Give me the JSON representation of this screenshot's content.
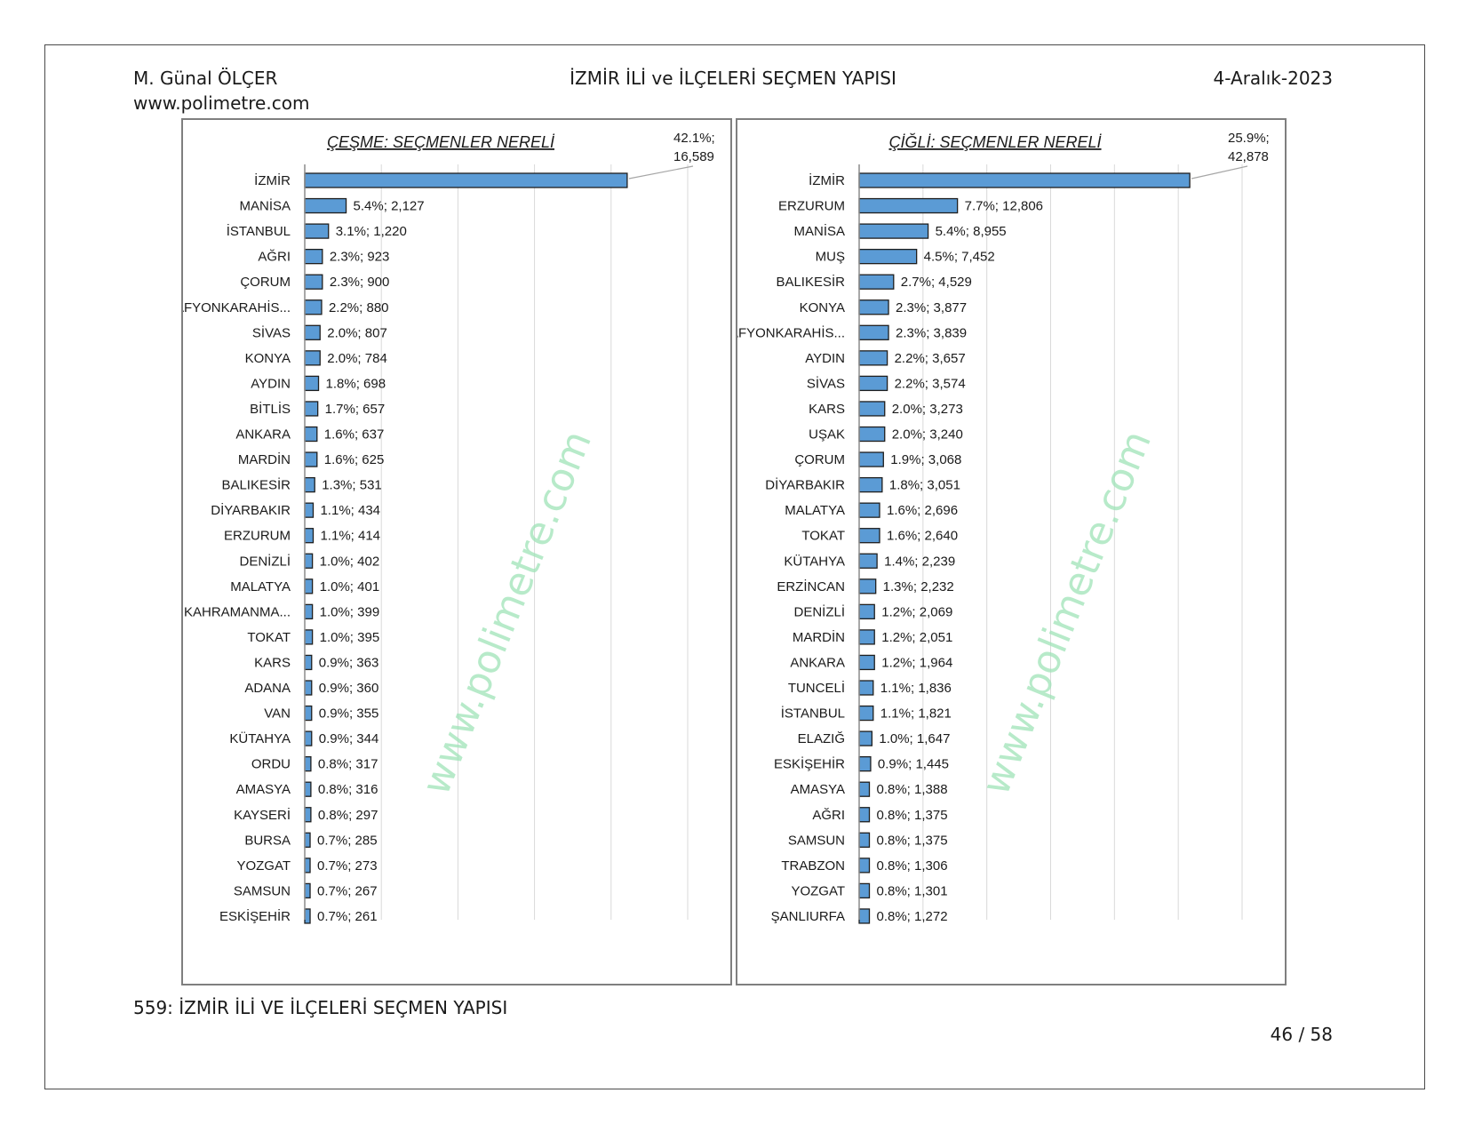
{
  "header": {
    "author": "M. Günal ÖLÇER",
    "website": "www.polimetre.com",
    "title": "İZMİR İLİ ve İLÇELERİ SEÇMEN YAPISI",
    "date": "4-Aralık-2023"
  },
  "footer": {
    "caption": "559: İZMİR İLİ VE İLÇELERİ SEÇMEN YAPISI",
    "page": "46 / 58"
  },
  "watermark": "www.polimetre.com",
  "colors": {
    "bar": "#5b9bd5",
    "bar_border": "#1f1f1f",
    "grid": "#d9d9d9",
    "watermark": "#9fe3b8"
  },
  "chart_data": [
    {
      "type": "bar",
      "orientation": "horizontal",
      "title": "ÇEŞME: SEÇMENLER NERELİ",
      "xlim": [
        0,
        50
      ],
      "grid": true,
      "categories": [
        "İZMİR",
        "MANİSA",
        "İSTANBUL",
        "AĞRI",
        "ÇORUM",
        "AFYONKARAHİS...",
        "SİVAS",
        "KONYA",
        "AYDIN",
        "BİTLİS",
        "ANKARA",
        "MARDİN",
        "BALIKESİR",
        "DİYARBAKIR",
        "ERZURUM",
        "DENİZLİ",
        "MALATYA",
        "KAHRAMANMA...",
        "TOKAT",
        "KARS",
        "ADANA",
        "VAN",
        "KÜTAHYA",
        "ORDU",
        "AMASYA",
        "KAYSERİ",
        "BURSA",
        "YOZGAT",
        "SAMSUN",
        "ESKİŞEHİR"
      ],
      "values": [
        42.1,
        5.4,
        3.1,
        2.3,
        2.3,
        2.2,
        2.0,
        2.0,
        1.8,
        1.7,
        1.6,
        1.6,
        1.3,
        1.1,
        1.1,
        1.0,
        1.0,
        1.0,
        1.0,
        0.9,
        0.9,
        0.9,
        0.9,
        0.8,
        0.8,
        0.8,
        0.7,
        0.7,
        0.7,
        0.7
      ],
      "counts": [
        16589,
        2127,
        1220,
        923,
        900,
        880,
        807,
        784,
        698,
        657,
        637,
        625,
        531,
        434,
        414,
        402,
        401,
        399,
        395,
        363,
        360,
        355,
        344,
        317,
        316,
        297,
        285,
        273,
        267,
        261
      ],
      "data_labels": [
        "42.1%; 16,589",
        "5.4%; 2,127",
        "3.1%; 1,220",
        "2.3%; 923",
        "2.3%; 900",
        "2.2%; 880",
        "2.0%; 807",
        "2.0%; 784",
        "1.8%; 698",
        "1.7%; 657",
        "1.6%; 637",
        "1.6%; 625",
        "1.3%; 531",
        "1.1%; 434",
        "1.1%; 414",
        "1.0%; 402",
        "1.0%; 401",
        "1.0%; 399",
        "1.0%; 395",
        "0.9%; 363",
        "0.9%; 360",
        "0.9%; 355",
        "0.9%; 344",
        "0.8%; 317",
        "0.8%; 316",
        "0.8%; 297",
        "0.7%; 285",
        "0.7%; 273",
        "0.7%; 267",
        "0.7%; 261"
      ]
    },
    {
      "type": "bar",
      "orientation": "horizontal",
      "title": "ÇİĞLİ: SEÇMENLER NERELİ",
      "xlim": [
        0,
        30
      ],
      "grid": true,
      "categories": [
        "İZMİR",
        "ERZURUM",
        "MANİSA",
        "MUŞ",
        "BALIKESİR",
        "KONYA",
        "AFYONKARAHİS...",
        "AYDIN",
        "SİVAS",
        "KARS",
        "UŞAK",
        "ÇORUM",
        "DİYARBAKIR",
        "MALATYA",
        "TOKAT",
        "KÜTAHYA",
        "ERZİNCAN",
        "DENİZLİ",
        "MARDİN",
        "ANKARA",
        "TUNCELİ",
        "İSTANBUL",
        "ELAZIĞ",
        "ESKİŞEHİR",
        "AMASYA",
        "AĞRI",
        "SAMSUN",
        "TRABZON",
        "YOZGAT",
        "ŞANLIURFA"
      ],
      "values": [
        25.9,
        7.7,
        5.4,
        4.5,
        2.7,
        2.3,
        2.3,
        2.2,
        2.2,
        2.0,
        2.0,
        1.9,
        1.8,
        1.6,
        1.6,
        1.4,
        1.3,
        1.2,
        1.2,
        1.2,
        1.1,
        1.1,
        1.0,
        0.9,
        0.8,
        0.8,
        0.8,
        0.8,
        0.8,
        0.8
      ],
      "counts": [
        42878,
        12806,
        8955,
        7452,
        4529,
        3877,
        3839,
        3657,
        3574,
        3273,
        3240,
        3068,
        3051,
        2696,
        2640,
        2239,
        2232,
        2069,
        2051,
        1964,
        1836,
        1821,
        1647,
        1445,
        1388,
        1375,
        1375,
        1306,
        1301,
        1272
      ],
      "data_labels": [
        "25.9%; 42,878",
        "7.7%; 12,806",
        "5.4%; 8,955",
        "4.5%; 7,452",
        "2.7%; 4,529",
        "2.3%; 3,877",
        "2.3%; 3,839",
        "2.2%; 3,657",
        "2.2%; 3,574",
        "2.0%; 3,273",
        "2.0%; 3,240",
        "1.9%; 3,068",
        "1.8%; 3,051",
        "1.6%; 2,696",
        "1.6%; 2,640",
        "1.4%; 2,239",
        "1.3%; 2,232",
        "1.2%; 2,069",
        "1.2%; 2,051",
        "1.2%; 1,964",
        "1.1%; 1,836",
        "1.1%; 1,821",
        "1.0%; 1,647",
        "0.9%; 1,445",
        "0.8%; 1,388",
        "0.8%; 1,375",
        "0.8%; 1,375",
        "0.8%; 1,306",
        "0.8%; 1,301",
        "0.8%; 1,272"
      ]
    }
  ]
}
